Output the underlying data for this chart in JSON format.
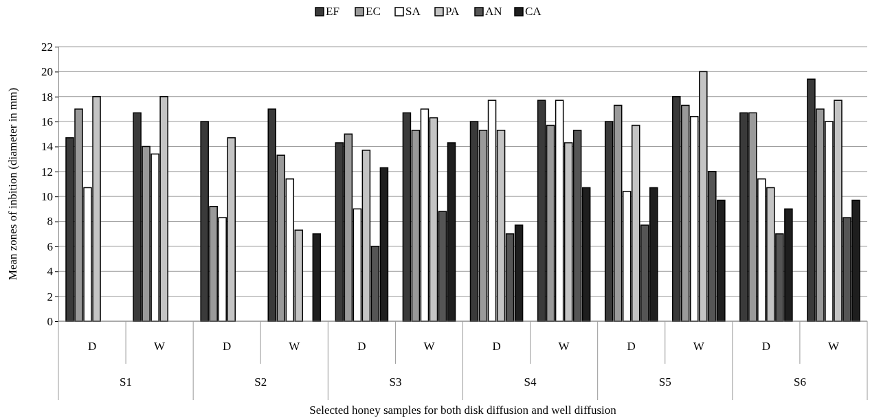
{
  "chart_data": {
    "type": "bar",
    "ylabel": "Mean zones of inbition (diameter in mm)",
    "xlabel": "Selected honey samples for both disk diffusion and well diffusion",
    "categories": [
      "D",
      "W",
      "D",
      "W",
      "D",
      "W",
      "D",
      "W",
      "D",
      "W",
      "D",
      "W"
    ],
    "annotations": [
      "S1",
      "S2",
      "S3",
      "S4",
      "S5",
      "S6"
    ],
    "series": [
      {
        "name": "EF",
        "color": "#3a3a3a",
        "values": [
          14.7,
          16.7,
          16,
          17,
          14.3,
          16.7,
          16,
          17.7,
          16,
          18,
          16.7,
          19.4
        ]
      },
      {
        "name": "EC",
        "color": "#9a9a9a",
        "values": [
          17,
          14,
          9.2,
          13.3,
          15,
          15.3,
          15.3,
          15.7,
          17.3,
          17.3,
          16.7,
          17
        ]
      },
      {
        "name": "SA",
        "color": "#ffffff",
        "values": [
          10.7,
          13.4,
          8.3,
          11.4,
          9,
          17,
          17.7,
          17.7,
          10.4,
          16.4,
          11.4,
          16
        ]
      },
      {
        "name": "PA",
        "color": "#c4c4c4",
        "values": [
          18,
          18,
          14.7,
          7.3,
          13.7,
          16.3,
          15.3,
          14.3,
          15.7,
          20,
          10.7,
          17.7
        ]
      },
      {
        "name": "AN",
        "color": "#555555",
        "values": [
          null,
          null,
          null,
          null,
          6,
          8.8,
          7,
          15.3,
          7.7,
          12,
          7,
          8.3
        ]
      },
      {
        "name": "CA",
        "color": "#1e1e1e",
        "values": [
          null,
          null,
          null,
          7,
          12.3,
          14.3,
          7.7,
          10.7,
          10.7,
          9.7,
          9,
          9.7
        ]
      }
    ],
    "ylim": [
      0,
      22
    ],
    "yticks": [
      0,
      2,
      4,
      6,
      8,
      10,
      12,
      14,
      16,
      18,
      20,
      22
    ],
    "grid": "y",
    "legend": "top"
  }
}
